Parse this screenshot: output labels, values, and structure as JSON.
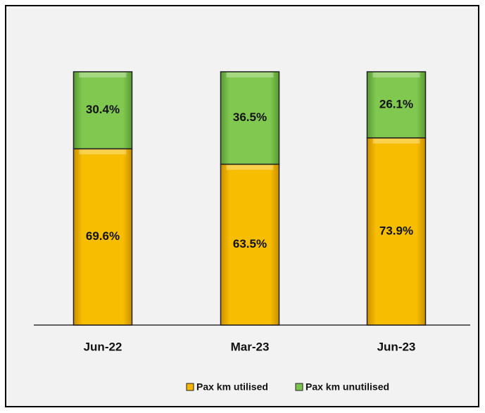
{
  "chart_data": {
    "type": "stacked_bar",
    "categories": [
      "Jun-22",
      "Mar-23",
      "Jun-23"
    ],
    "series": [
      {
        "name": "Pax km utilised",
        "color": "#f5b800",
        "values": [
          69.6,
          63.5,
          73.9
        ],
        "value_labels": [
          "69.6%",
          "63.5%",
          "73.9%"
        ]
      },
      {
        "name": "Pax km unutilised",
        "color": "#7cc44e",
        "values": [
          30.4,
          36.5,
          26.1
        ],
        "value_labels": [
          "30.4%",
          "36.5%",
          "26.1%"
        ]
      }
    ],
    "legend": "bottom"
  }
}
